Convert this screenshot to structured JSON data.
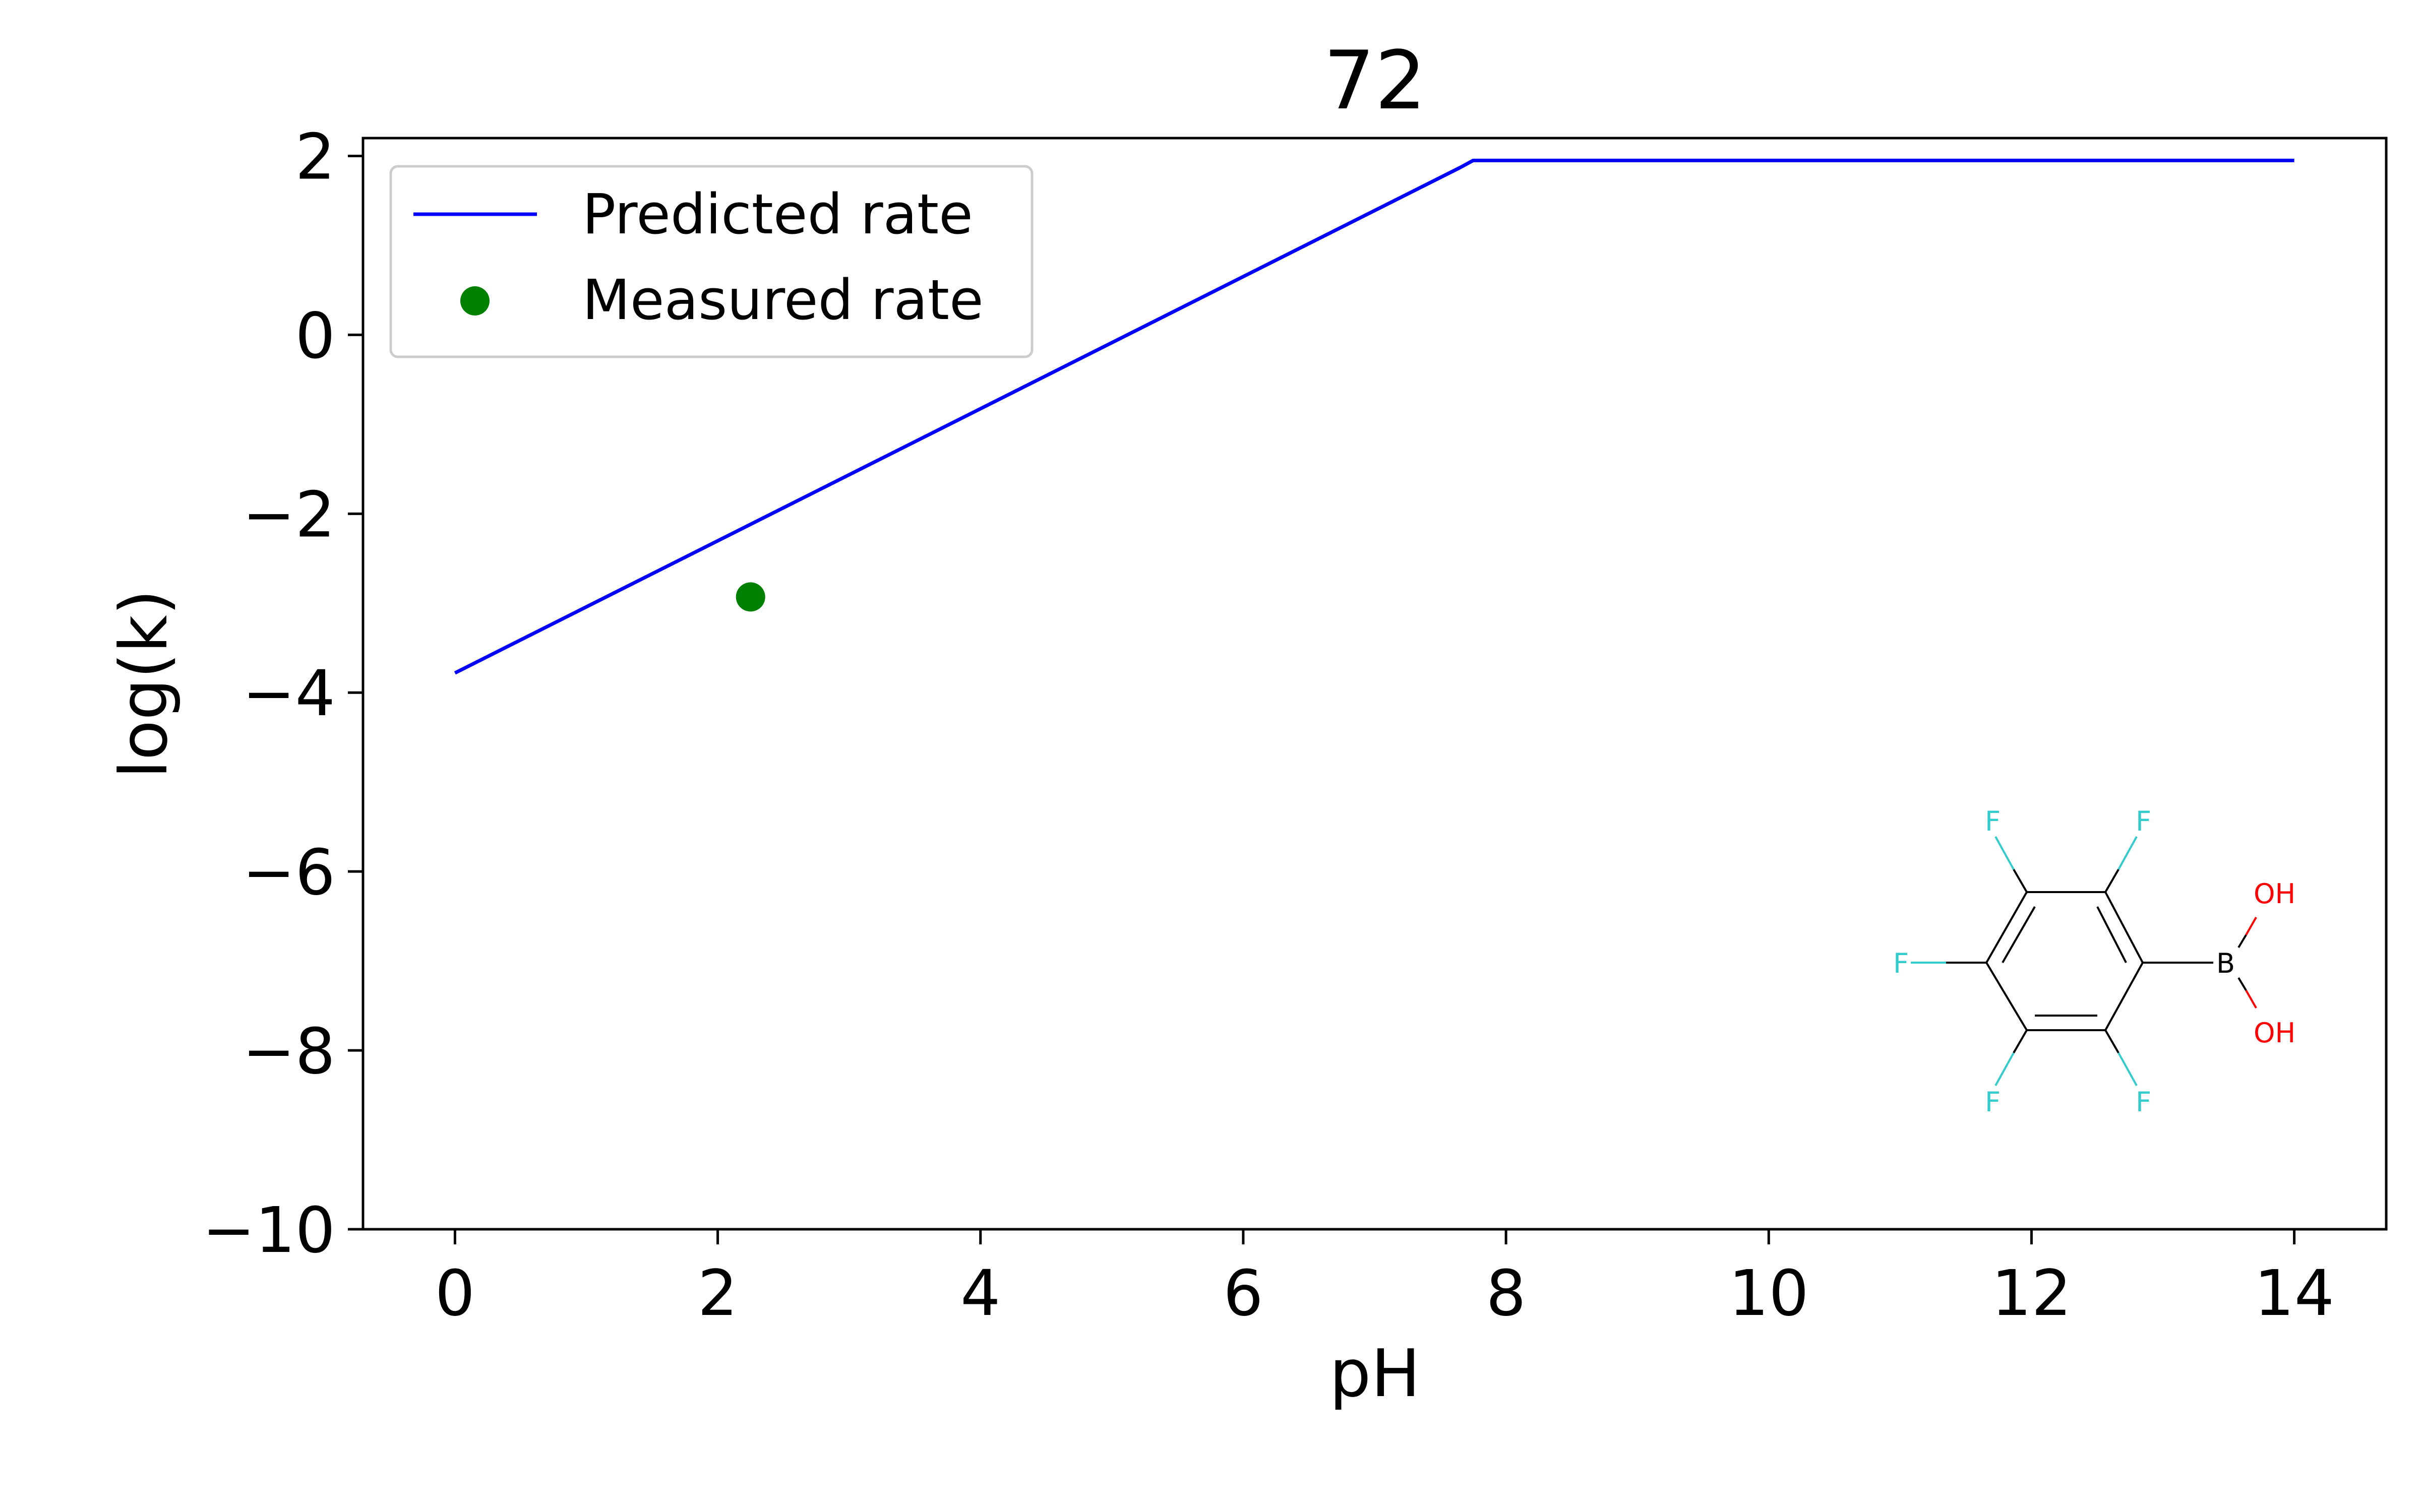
{
  "chart_data": {
    "type": "line",
    "title": "72",
    "xlabel": "pH",
    "ylabel": "log(k)",
    "xlim": [
      -0.7,
      14.7
    ],
    "ylim": [
      -10,
      2.2
    ],
    "xticks": [
      0,
      2,
      4,
      6,
      8,
      10,
      12,
      14
    ],
    "yticks": [
      2,
      0,
      -2,
      -4,
      -6,
      -8,
      -10
    ],
    "xtick_labels": [
      "0",
      "2",
      "4",
      "6",
      "8",
      "10",
      "12",
      "14"
    ],
    "ytick_labels": [
      "2",
      "0",
      "−2",
      "−4",
      "−6",
      "−8",
      "−10"
    ],
    "grid": false,
    "legend_position": "top-left",
    "series": [
      {
        "name": "Predicted rate",
        "kind": "line",
        "color": "#0000ff",
        "x": [
          0,
          7.65,
          7.75,
          14
        ],
        "y": [
          -3.78,
          1.87,
          1.95,
          1.95
        ]
      },
      {
        "name": "Measured rate",
        "kind": "scatter",
        "color": "#008000",
        "x": [
          2.25
        ],
        "y": [
          -2.93
        ]
      }
    ],
    "annotations": {
      "molecule": {
        "name": "pentafluorophenylboronic acid",
        "atom_labels": {
          "f": "F",
          "b": "B",
          "oh": "OH"
        },
        "colors": {
          "fluorine": "#33cccc",
          "oxygen": "#ff0000",
          "bond": "#000000"
        }
      }
    }
  }
}
